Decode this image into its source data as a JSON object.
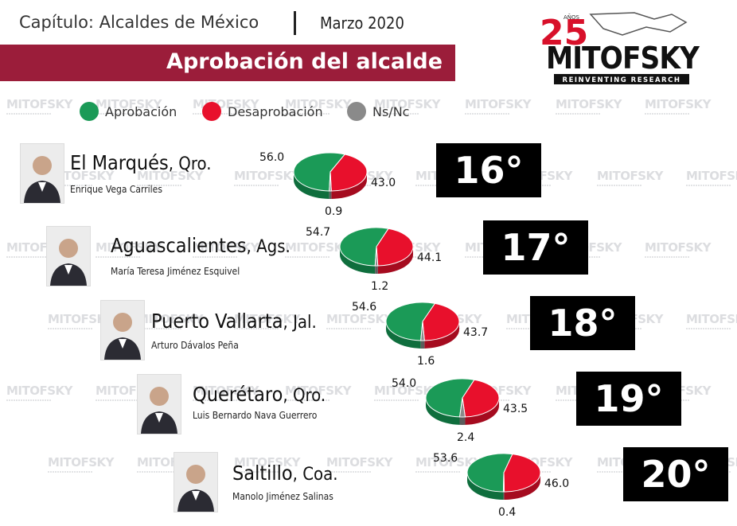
{
  "header": {
    "chapter": "Capítulo: Alcaldes de México",
    "date": "Marzo 2020",
    "banner_title": "Aprobación del alcalde"
  },
  "logo": {
    "anniversary": "25",
    "anos": "AÑOS",
    "brand": "MITOFSKY",
    "tagline": "REINVENTING RESEARCH"
  },
  "watermark_text": "MITOFSKY",
  "legend": [
    {
      "label": "Aprobación",
      "color": "#1b9a57"
    },
    {
      "label": "Desaprobación",
      "color": "#e8102c"
    },
    {
      "label": "Ns/Nc",
      "color": "#8a8a8a"
    }
  ],
  "chart_data": {
    "type": "pie",
    "series_names": [
      "Aprobación",
      "Desaprobación",
      "Ns/Nc"
    ],
    "rows": [
      {
        "city": "El Marqués",
        "state": ", Qro.",
        "mayor": "Enrique Vega Carriles",
        "values": [
          56.0,
          43.0,
          0.9
        ],
        "labels": [
          "56.0",
          "43.0",
          "0.9"
        ],
        "rank": "16°"
      },
      {
        "city": "Aguascalientes",
        "state": ", Ags.",
        "mayor": "María Teresa Jiménez Esquivel",
        "values": [
          54.7,
          44.1,
          1.2
        ],
        "labels": [
          "54.7",
          "44.1",
          "1.2"
        ],
        "rank": "17°"
      },
      {
        "city": "Puerto Vallarta",
        "state": ", Jal.",
        "mayor": "Arturo Dávalos Peña",
        "values": [
          54.6,
          43.7,
          1.6
        ],
        "labels": [
          "54.6",
          "43.7",
          "1.6"
        ],
        "rank": "18°"
      },
      {
        "city": "Querétaro",
        "state": ", Qro.",
        "mayor": "Luis Bernardo Nava Guerrero",
        "values": [
          54.0,
          43.5,
          2.4
        ],
        "labels": [
          "54.0",
          "43.5",
          "2.4"
        ],
        "rank": "19°"
      },
      {
        "city": "Saltillo",
        "state": ", Coa.",
        "mayor": "Manolo Jiménez Salinas",
        "values": [
          53.6,
          46.0,
          0.4
        ],
        "labels": [
          "53.6",
          "46.0",
          "0.4"
        ],
        "rank": "20°"
      }
    ]
  }
}
